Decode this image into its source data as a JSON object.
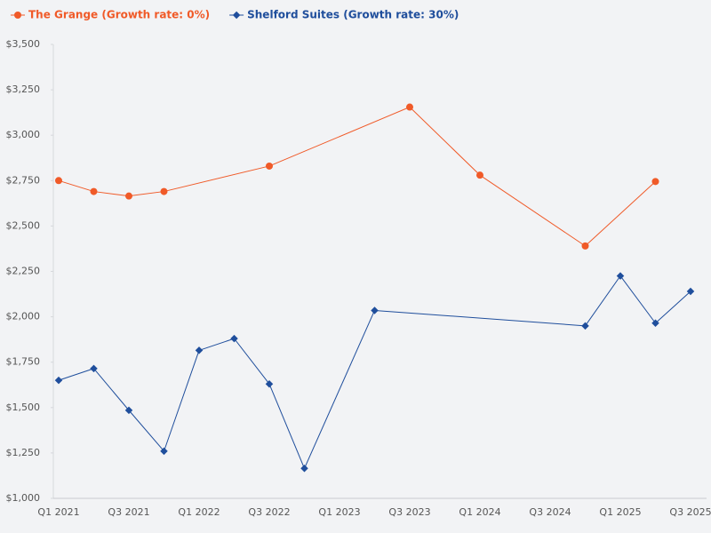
{
  "chart_data": {
    "type": "line",
    "categories": [
      "Q1 2021",
      null,
      "Q3 2021",
      null,
      "Q1 2022",
      null,
      "Q3 2022",
      null,
      "Q1 2023",
      null,
      "Q3 2023",
      null,
      "Q1 2024",
      null,
      "Q3 2024",
      null,
      "Q1 2025",
      null,
      "Q3 2025"
    ],
    "series": [
      {
        "name": "The Grange (Growth rate: 0%)",
        "color": "#f05a28",
        "marker": "circle",
        "values": [
          2750,
          2690,
          2665,
          2690,
          null,
          null,
          2830,
          null,
          null,
          null,
          3155,
          null,
          2780,
          null,
          null,
          2390,
          null,
          2745,
          null
        ]
      },
      {
        "name": "Shelford Suites (Growth rate: 30%)",
        "color": "#1f4e9c",
        "marker": "diamond",
        "values": [
          1650,
          1715,
          1485,
          1260,
          1815,
          1880,
          1630,
          1165,
          null,
          2035,
          null,
          null,
          null,
          null,
          null,
          1950,
          2225,
          1965,
          2140
        ]
      }
    ],
    "ylim": [
      1000,
      3500
    ],
    "yticks": [
      {
        "value": 1000,
        "label": "$1,000"
      },
      {
        "value": 1250,
        "label": "$1,250"
      },
      {
        "value": 1500,
        "label": "$1,500"
      },
      {
        "value": 1750,
        "label": "$1,750"
      },
      {
        "value": 2000,
        "label": "$2,000"
      },
      {
        "value": 2250,
        "label": "$2,250"
      },
      {
        "value": 2500,
        "label": "$2,500"
      },
      {
        "value": 2750,
        "label": "$2,750"
      },
      {
        "value": 3000,
        "label": "$3,000"
      },
      {
        "value": 3250,
        "label": "$3,250"
      },
      {
        "value": 3500,
        "label": "$3,500"
      }
    ],
    "grid": false,
    "legend": "top-left"
  }
}
